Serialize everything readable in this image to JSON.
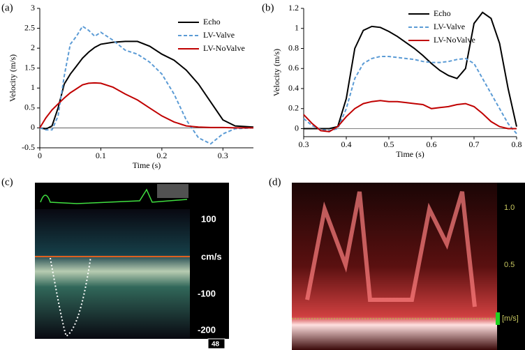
{
  "chart_data": [
    {
      "type": "line",
      "label": "(a)",
      "x_label": "Time (s)",
      "y_label": "Velocity (m/s)",
      "x": [
        0,
        0.01,
        0.02,
        0.03,
        0.04,
        0.05,
        0.06,
        0.07,
        0.08,
        0.09,
        0.1,
        0.12,
        0.14,
        0.16,
        0.18,
        0.2,
        0.22,
        0.24,
        0.26,
        0.28,
        0.3,
        0.32,
        0.35
      ],
      "xlim": [
        0,
        0.35
      ],
      "xticks": [
        0,
        0.1,
        0.2,
        0.3
      ],
      "ylim": [
        -0.5,
        3
      ],
      "yticks": [
        -0.5,
        0,
        0.5,
        1,
        1.5,
        2,
        2.5,
        3
      ],
      "legend": "upper right",
      "series": [
        {
          "name": "Echo",
          "color": "#000000",
          "dashed": false,
          "values": [
            0,
            -0.03,
            0.05,
            0.5,
            1.1,
            1.35,
            1.55,
            1.75,
            1.9,
            2.02,
            2.1,
            2.15,
            2.17,
            2.17,
            2.05,
            1.85,
            1.7,
            1.45,
            1.1,
            0.65,
            0.2,
            0.05,
            0.02
          ]
        },
        {
          "name": "LV-Valve",
          "color": "#5b9bd5",
          "dashed": true,
          "values": [
            0,
            -0.05,
            -0.05,
            0.3,
            1.3,
            2.1,
            2.3,
            2.55,
            2.45,
            2.3,
            2.4,
            2.2,
            1.95,
            1.85,
            1.65,
            1.35,
            0.85,
            0.2,
            -0.25,
            -0.4,
            -0.15,
            -0.02,
            0
          ]
        },
        {
          "name": "LV-NoValve",
          "color": "#c00000",
          "dashed": false,
          "values": [
            0,
            0.25,
            0.45,
            0.6,
            0.75,
            0.88,
            0.98,
            1.08,
            1.12,
            1.13,
            1.12,
            1.02,
            0.85,
            0.7,
            0.5,
            0.3,
            0.15,
            0.05,
            0.02,
            0.01,
            0.01,
            0,
            0
          ]
        }
      ]
    },
    {
      "type": "line",
      "label": "(b)",
      "x_label": "Time (s)",
      "y_label": "Velocity (m/s)",
      "x": [
        0.3,
        0.32,
        0.34,
        0.36,
        0.38,
        0.4,
        0.42,
        0.44,
        0.46,
        0.48,
        0.5,
        0.52,
        0.54,
        0.56,
        0.58,
        0.6,
        0.62,
        0.64,
        0.66,
        0.68,
        0.7,
        0.72,
        0.74,
        0.76,
        0.78,
        0.8
      ],
      "xlim": [
        0.3,
        0.8
      ],
      "xticks": [
        0.3,
        0.4,
        0.5,
        0.6,
        0.7,
        0.8
      ],
      "ylim": [
        -0.08,
        1.2
      ],
      "yticks": [
        0,
        0.2,
        0.4,
        0.6,
        0.8,
        1,
        1.2
      ],
      "legend": "upper right",
      "series": [
        {
          "name": "Echo",
          "color": "#000000",
          "dashed": false,
          "values": [
            0,
            0,
            0,
            0,
            0.02,
            0.3,
            0.8,
            0.98,
            1.02,
            1.01,
            0.97,
            0.92,
            0.86,
            0.8,
            0.73,
            0.65,
            0.58,
            0.53,
            0.5,
            0.6,
            1.05,
            1.16,
            1.1,
            0.85,
            0.4,
            0.02
          ]
        },
        {
          "name": "LV-Valve",
          "color": "#5b9bd5",
          "dashed": true,
          "values": [
            0.1,
            0.03,
            -0.01,
            -0.02,
            0,
            0.2,
            0.5,
            0.65,
            0.7,
            0.72,
            0.72,
            0.71,
            0.7,
            0.69,
            0.67,
            0.66,
            0.66,
            0.67,
            0.69,
            0.7,
            0.65,
            0.5,
            0.35,
            0.2,
            0.05,
            -0.05
          ]
        },
        {
          "name": "LV-NoValve",
          "color": "#c00000",
          "dashed": false,
          "values": [
            0.14,
            0.05,
            -0.02,
            -0.03,
            0.02,
            0.12,
            0.2,
            0.25,
            0.27,
            0.28,
            0.27,
            0.27,
            0.26,
            0.25,
            0.24,
            0.2,
            0.21,
            0.22,
            0.24,
            0.25,
            0.22,
            0.15,
            0.07,
            0.02,
            0,
            0
          ]
        }
      ]
    }
  ],
  "panels": [
    {
      "label": "(c)",
      "texts": [
        "100",
        "cm/s",
        "-100",
        "-200",
        "48"
      ]
    },
    {
      "label": "(d)",
      "texts": [
        "1.0",
        "0.5",
        "[m/s]"
      ]
    }
  ]
}
